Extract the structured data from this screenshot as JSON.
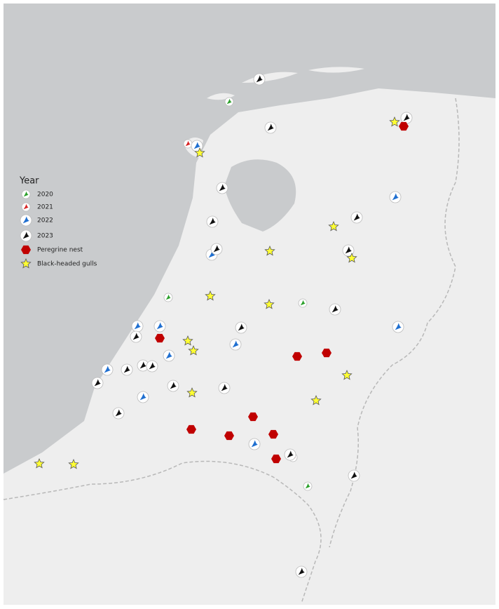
{
  "legend": {
    "title": "Year",
    "items": [
      "2020",
      "2021",
      "2022",
      "2023",
      "Peregrine nest",
      "Black-headed gulls"
    ]
  }
}
